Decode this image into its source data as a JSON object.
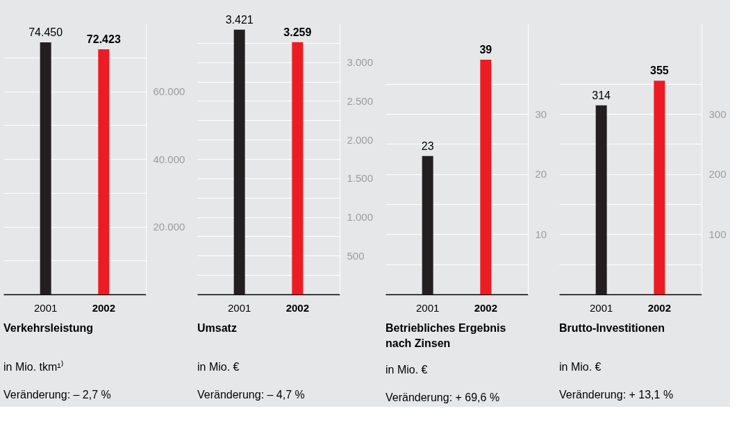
{
  "chart_data": [
    {
      "type": "bar",
      "title": "Verkehrsleistung",
      "annotations": [
        "in Mio. tkm¹⁾",
        "Veränderung: – 2,7 %"
      ],
      "categories": [
        "2001",
        "2002"
      ],
      "values": [
        74450,
        72423
      ],
      "colors": [
        "#231f20",
        "#ed1c24"
      ],
      "value_labels": [
        "74.450",
        "72.423"
      ],
      "ylim": [
        0,
        80000
      ],
      "yticks": [
        {
          "value": 10000,
          "label": null
        },
        {
          "value": 20000,
          "label": "20.000"
        },
        {
          "value": 30000,
          "label": null
        },
        {
          "value": 40000,
          "label": "40.000"
        },
        {
          "value": 50000,
          "label": null
        },
        {
          "value": 60000,
          "label": "60.000"
        },
        {
          "value": 70000,
          "label": null
        }
      ],
      "grid": "y"
    },
    {
      "type": "bar",
      "title": "Umsatz",
      "annotations": [
        "in Mio. €",
        "Veränderung: – 4,7 %"
      ],
      "categories": [
        "2001",
        "2002"
      ],
      "values": [
        3421,
        3259
      ],
      "colors": [
        "#231f20",
        "#ed1c24"
      ],
      "value_labels": [
        "3.421",
        "3.259"
      ],
      "ylim": [
        0,
        3500
      ],
      "yticks": [
        {
          "value": 250,
          "label": null
        },
        {
          "value": 500,
          "label": "500"
        },
        {
          "value": 750,
          "label": null
        },
        {
          "value": 1000,
          "label": "1.000"
        },
        {
          "value": 1250,
          "label": null
        },
        {
          "value": 1500,
          "label": "1.500"
        },
        {
          "value": 1750,
          "label": null
        },
        {
          "value": 2000,
          "label": "2.000"
        },
        {
          "value": 2250,
          "label": null
        },
        {
          "value": 2500,
          "label": "2.500"
        },
        {
          "value": 2750,
          "label": null
        },
        {
          "value": 3000,
          "label": "3.000"
        },
        {
          "value": 3250,
          "label": null
        }
      ],
      "grid": "y"
    },
    {
      "type": "bar",
      "title": "Betriebliches Ergebnis nach Zinsen",
      "annotations": [
        "in Mio. €",
        "Veränderung: + 69,6 %"
      ],
      "categories": [
        "2001",
        "2002"
      ],
      "values": [
        23,
        39
      ],
      "colors": [
        "#231f20",
        "#ed1c24"
      ],
      "value_labels": [
        "23",
        "39"
      ],
      "ylim": [
        0,
        45
      ],
      "yticks": [
        {
          "value": 5,
          "label": null
        },
        {
          "value": 10,
          "label": "10"
        },
        {
          "value": 15,
          "label": null
        },
        {
          "value": 20,
          "label": "20"
        },
        {
          "value": 25,
          "label": null
        },
        {
          "value": 30,
          "label": "30"
        },
        {
          "value": 35,
          "label": null
        }
      ],
      "grid": "y"
    },
    {
      "type": "bar",
      "title": "Brutto-Investitionen",
      "annotations": [
        "in Mio. €",
        "Veränderung: + 13,1 %"
      ],
      "categories": [
        "2001",
        "2002"
      ],
      "values": [
        314,
        355
      ],
      "colors": [
        "#231f20",
        "#ed1c24"
      ],
      "value_labels": [
        "314",
        "355"
      ],
      "ylim": [
        0,
        450
      ],
      "yticks": [
        {
          "value": 50,
          "label": null
        },
        {
          "value": 100,
          "label": "100"
        },
        {
          "value": 150,
          "label": null
        },
        {
          "value": 200,
          "label": "200"
        },
        {
          "value": 250,
          "label": null
        },
        {
          "value": 300,
          "label": "300"
        },
        {
          "value": 350,
          "label": null
        }
      ],
      "grid": "y"
    }
  ]
}
